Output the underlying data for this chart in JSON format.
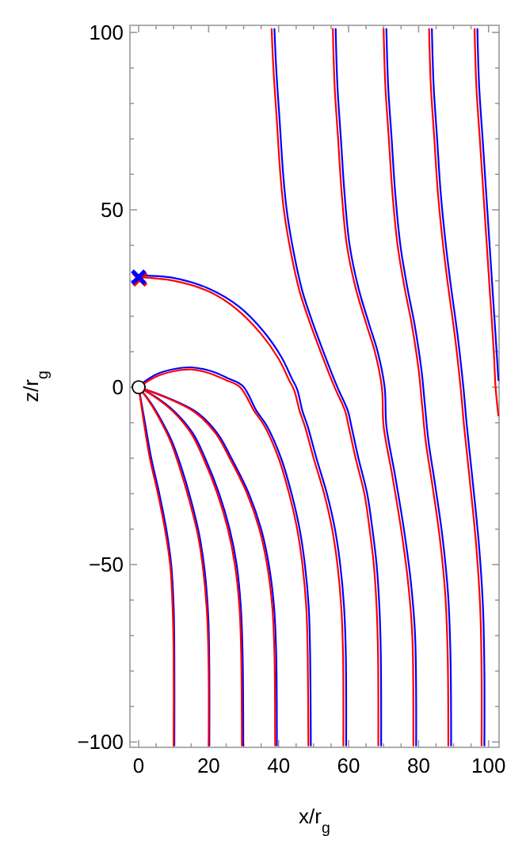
{
  "chart_data": {
    "type": "line",
    "xlabel": "x/r$_{g}$",
    "ylabel": "z/r$_{g}$",
    "xlim": [
      -2.5,
      103
    ],
    "ylim": [
      -101.5,
      102
    ],
    "xticks": [
      0,
      {
        "value": 5,
        "label": null
      },
      {
        "value": 10,
        "label": null
      },
      {
        "value": 15,
        "label": null
      },
      20,
      {
        "value": 25,
        "label": null
      },
      {
        "value": 30,
        "label": null
      },
      {
        "value": 35,
        "label": null
      },
      40,
      {
        "value": 45,
        "label": null
      },
      {
        "value": 50,
        "label": null
      },
      {
        "value": 55,
        "label": null
      },
      60,
      {
        "value": 65,
        "label": null
      },
      {
        "value": 70,
        "label": null
      },
      {
        "value": 75,
        "label": null
      },
      80,
      {
        "value": 85,
        "label": null
      },
      {
        "value": 90,
        "label": null
      },
      {
        "value": 95,
        "label": null
      },
      100
    ],
    "yticks": [
      -100,
      {
        "value": -90,
        "label": null
      },
      {
        "value": -80,
        "label": null
      },
      {
        "value": -70,
        "label": null
      },
      {
        "value": -60,
        "label": null
      },
      -50,
      {
        "value": -40,
        "label": null
      },
      {
        "value": -30,
        "label": null
      },
      {
        "value": -20,
        "label": null
      },
      {
        "value": -10,
        "label": null
      },
      0,
      {
        "value": 10,
        "label": null
      },
      {
        "value": 20,
        "label": null
      },
      {
        "value": 30,
        "label": null
      },
      {
        "value": 40,
        "label": null
      },
      50,
      {
        "value": 60,
        "label": null
      },
      {
        "value": 70,
        "label": null
      },
      {
        "value": 80,
        "label": null
      },
      {
        "value": 90,
        "label": null
      },
      100
    ],
    "grid": false,
    "line_style": "solid",
    "marker": "none",
    "series": [
      {
        "color": "#0000ff",
        "x": [
          0,
          1.8,
          3.6,
          5.9,
          7.9,
          9.3,
          10,
          10.2,
          10.2
        ],
        "values": [
          0,
          -10,
          -20,
          -30,
          -40,
          -50,
          -62,
          -75,
          -101
        ]
      },
      {
        "color": "#0000ff",
        "x": [
          0,
          3.2,
          6.3,
          9.4,
          12,
          15,
          17.4,
          18.9,
          19.9,
          20.2,
          20.2
        ],
        "values": [
          0,
          -4,
          -9,
          -15,
          -22,
          -32,
          -42,
          -52,
          -65,
          -80,
          -101
        ]
      },
      {
        "color": "#0000ff",
        "x": [
          0,
          5.3,
          10.4,
          15.5,
          19,
          23,
          26,
          28,
          29.2,
          29.7,
          29.9
        ],
        "values": [
          0,
          -3,
          -7,
          -13,
          -20,
          -30,
          -40,
          -50,
          -62,
          -75,
          -101
        ]
      },
      {
        "color": "#0000ff",
        "x": [
          0,
          8.3,
          16.5,
          22.5,
          26.5,
          31.5,
          35,
          37.2,
          38.7,
          39.3,
          39.5
        ],
        "values": [
          0,
          -3,
          -7,
          -13,
          -20,
          -30,
          -40,
          -50,
          -62,
          -75,
          -101
        ]
      },
      {
        "color": "#0000ff",
        "x": [
          0,
          5,
          10,
          15,
          20.5,
          25.6,
          29.7,
          33.7,
          36.7,
          40.7,
          43.7,
          46,
          47.5,
          48.6,
          49,
          49.2
        ],
        "values": [
          0.4,
          3.6,
          5.1,
          5.6,
          4.6,
          2.5,
          0.4,
          -6.7,
          -11,
          -20,
          -30,
          -40,
          -50,
          -62,
          -75,
          -101
        ]
      },
      {
        "color": "#0000ff",
        "x": [
          0,
          10,
          20,
          28.7,
          35.8,
          40.8,
          43.8,
          45.3,
          46.8,
          48.3,
          50.8,
          53.8,
          56.1,
          57.6,
          58.7,
          59.2,
          59.3
        ],
        "values": [
          31.5,
          30.8,
          27.8,
          22.7,
          15.6,
          8.5,
          2.4,
          -0.6,
          -6.7,
          -11,
          -20,
          -30,
          -40,
          -50,
          -62,
          -75,
          -101
        ]
      },
      {
        "color": "#0000ff",
        "x": [
          38.8,
          39.3,
          40.3,
          41.3,
          42.3,
          44.3,
          46.8,
          49.8,
          52.8,
          56.8,
          59.8,
          60.8,
          62.8,
          65.3,
          66.8,
          68,
          68.8,
          69.2,
          69.3
        ],
        "values": [
          101,
          90,
          75,
          60,
          50,
          38,
          27,
          18,
          10,
          0,
          -6.7,
          -11,
          -20,
          -30,
          -40,
          -50,
          -62,
          -75,
          -101
        ]
      },
      {
        "color": "#0000ff",
        "x": [
          56.3,
          56.8,
          57.8,
          58.8,
          60.3,
          62.8,
          65.8,
          68.3,
          70.3,
          70.8,
          73.3,
          75.8,
          77.8,
          79,
          79.3
        ],
        "values": [
          101,
          85,
          70,
          55,
          40,
          28,
          18,
          10,
          0,
          -11,
          -25,
          -40,
          -55,
          -70,
          -101
        ]
      },
      {
        "color": "#0000ff",
        "x": [
          70.8,
          71.3,
          72.3,
          73.3,
          74.8,
          76.8,
          78.8,
          80.8,
          81.8,
          82.8,
          84.8,
          86.8,
          88.4,
          89.1,
          89.3
        ],
        "values": [
          101,
          85,
          70,
          55,
          40,
          28,
          18,
          5,
          -5,
          -15,
          -28,
          -42,
          -58,
          -75,
          -101
        ]
      },
      {
        "color": "#0000ff",
        "x": [
          83.8,
          84.3,
          85.3,
          86.3,
          87.8,
          89.3,
          91.1,
          92.8,
          93.8,
          95.3,
          97.3,
          98.4,
          98.8,
          98.8
        ],
        "values": [
          101,
          85,
          70,
          55,
          40,
          28,
          15,
          0,
          -11,
          -25,
          -45,
          -62,
          -80,
          -101
        ]
      },
      {
        "color": "#0000ff",
        "x": [
          96.8,
          97.3,
          98.3,
          99.3,
          100.3,
          101.3,
          102.3,
          102.8
        ],
        "values": [
          101,
          85,
          70,
          55,
          40,
          25,
          10,
          2
        ]
      },
      {
        "color": "#ff0000",
        "x": [
          0,
          1.5,
          3.2,
          5.5,
          7.5,
          9,
          9.7,
          10,
          10
        ],
        "values": [
          0,
          -10,
          -20,
          -30,
          -40,
          -50,
          -62,
          -75,
          -101
        ]
      },
      {
        "color": "#ff0000",
        "x": [
          0,
          3,
          6,
          9,
          11.5,
          14.5,
          17,
          18.5,
          19.6,
          20,
          20
        ],
        "values": [
          0,
          -4,
          -9,
          -15,
          -22,
          -32,
          -42,
          -52,
          -65,
          -80,
          -101
        ]
      },
      {
        "color": "#ff0000",
        "x": [
          0,
          5,
          10,
          15,
          18.5,
          22.5,
          25.5,
          27.5,
          28.8,
          29.3,
          29.5
        ],
        "values": [
          0,
          -3,
          -7,
          -13,
          -20,
          -30,
          -40,
          -50,
          -62,
          -75,
          -101
        ]
      },
      {
        "color": "#ff0000",
        "x": [
          0,
          8,
          16,
          22,
          26,
          31,
          34.5,
          36.7,
          38.2,
          38.8,
          39
        ],
        "values": [
          0,
          -3,
          -7,
          -13,
          -20,
          -30,
          -40,
          -50,
          -62,
          -75,
          -101
        ]
      },
      {
        "color": "#ff0000",
        "x": [
          0,
          5,
          10,
          15,
          20,
          25,
          29,
          33,
          36,
          40,
          43,
          45.3,
          46.8,
          47.9,
          48.3,
          48.5
        ],
        "values": [
          0,
          3,
          4.5,
          5,
          4,
          2,
          0,
          -6.7,
          -11,
          -20,
          -30,
          -40,
          -50,
          -62,
          -75,
          -101
        ]
      },
      {
        "color": "#ff0000",
        "x": [
          0,
          10,
          20,
          28,
          35,
          40,
          43,
          44.5,
          46,
          47.5,
          50,
          53,
          55.3,
          56.8,
          57.9,
          58.4,
          58.5
        ],
        "values": [
          31,
          30,
          27,
          22,
          15,
          8,
          2,
          -1,
          -6.7,
          -11,
          -20,
          -30,
          -40,
          -50,
          -62,
          -75,
          -101
        ]
      },
      {
        "color": "#ff0000",
        "x": [
          38,
          38.5,
          39.5,
          40.5,
          41.5,
          43.5,
          46,
          49,
          52,
          56,
          59,
          60,
          62,
          64.5,
          66,
          67.2,
          68,
          68.4,
          68.5
        ],
        "values": [
          101,
          90,
          75,
          60,
          50,
          38,
          27,
          18,
          10,
          0,
          -6.7,
          -11,
          -20,
          -30,
          -40,
          -50,
          -62,
          -75,
          -101
        ]
      },
      {
        "color": "#ff0000",
        "x": [
          55.5,
          56,
          57,
          58,
          59.5,
          62,
          65,
          67.5,
          69.5,
          70,
          72.5,
          75,
          77,
          78.2,
          78.5
        ],
        "values": [
          101,
          85,
          70,
          55,
          40,
          28,
          18,
          10,
          0,
          -11,
          -25,
          -40,
          -55,
          -70,
          -101
        ]
      },
      {
        "color": "#ff0000",
        "x": [
          70,
          70.5,
          71.5,
          72.5,
          74,
          76,
          78,
          80,
          81,
          82,
          84,
          86,
          87.6,
          88.3,
          88.5
        ],
        "values": [
          101,
          85,
          70,
          55,
          40,
          28,
          18,
          5,
          -5,
          -15,
          -28,
          -42,
          -58,
          -75,
          -101
        ]
      },
      {
        "color": "#ff0000",
        "x": [
          83,
          83.5,
          84.5,
          85.5,
          87,
          88.5,
          90.3,
          92,
          93,
          94.5,
          96.5,
          97.6,
          98,
          98
        ],
        "values": [
          101,
          85,
          70,
          55,
          40,
          28,
          15,
          0,
          -11,
          -25,
          -45,
          -62,
          -80,
          -101
        ]
      },
      {
        "color": "#ff0000",
        "x": [
          96,
          96.5,
          97.5,
          98.5,
          99.5,
          100.5,
          101.5,
          102,
          102.8
        ],
        "values": [
          101,
          85,
          70,
          55,
          40,
          25,
          10,
          0,
          -8
        ]
      },
      {
        "type": "scatter",
        "marker": "cross",
        "color": "#ff0000",
        "x": [
          0.3
        ],
        "values": [
          30.5
        ]
      },
      {
        "type": "scatter",
        "marker": "cross",
        "color": "#0000ff",
        "x": [
          0
        ],
        "values": [
          31
        ]
      },
      {
        "type": "scatter",
        "marker": "circle",
        "color": "#000000",
        "x": [
          0
        ],
        "values": [
          0
        ]
      }
    ]
  }
}
